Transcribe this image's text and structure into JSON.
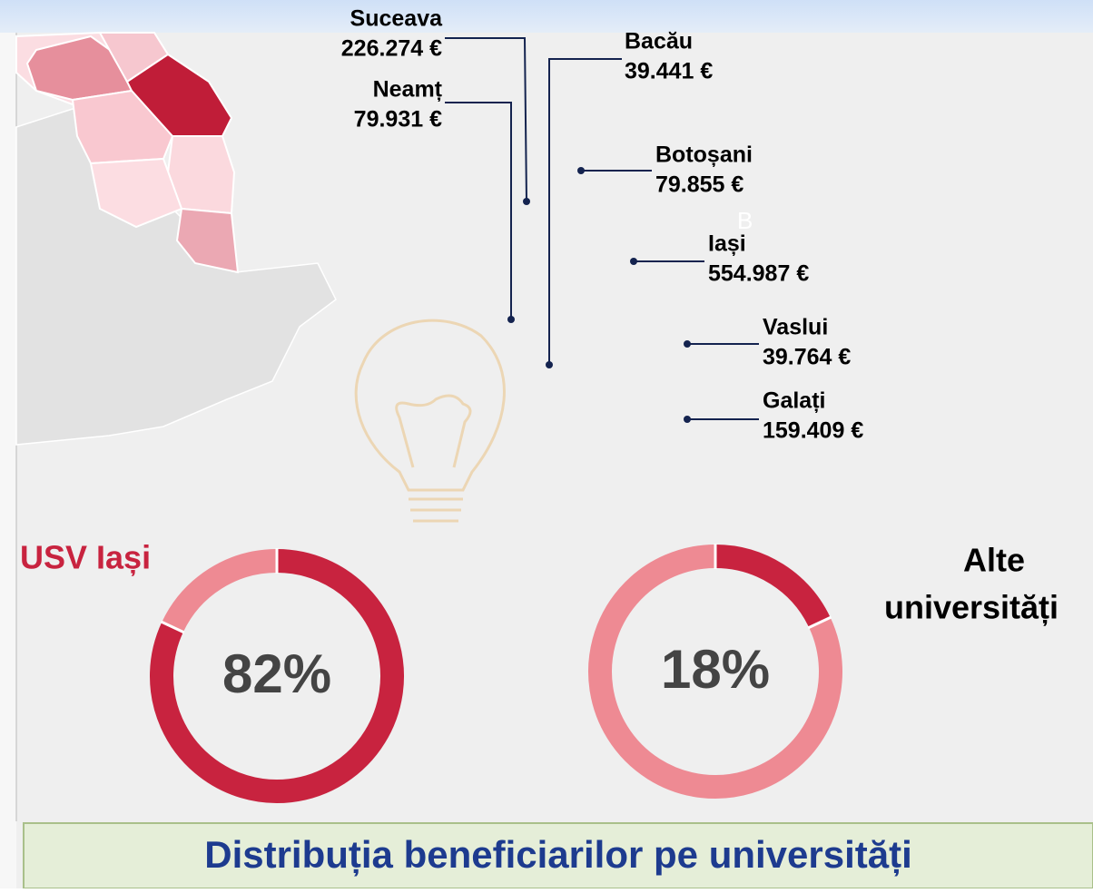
{
  "callouts": [
    {
      "name": "Suceava",
      "amount": "226.274 €"
    },
    {
      "name": "Neamț",
      "amount": "79.931 €"
    },
    {
      "name": "Bacău",
      "amount": "39.441 €"
    },
    {
      "name": "Botoșani",
      "amount": "79.855 €"
    },
    {
      "name": "Iași",
      "amount": "554.987 €"
    },
    {
      "name": "Vaslui",
      "amount": "39.764 €"
    },
    {
      "name": "Galați",
      "amount": "159.409 €"
    }
  ],
  "stray_letter": "B",
  "donuts": [
    {
      "label": "USV Iași",
      "value": 82,
      "value_label": "82%"
    },
    {
      "label_lines": [
        "Alte",
        "universități"
      ],
      "value": 18,
      "value_label": "18%"
    }
  ],
  "footer": "Distribuția beneficiarilor pe universități"
}
